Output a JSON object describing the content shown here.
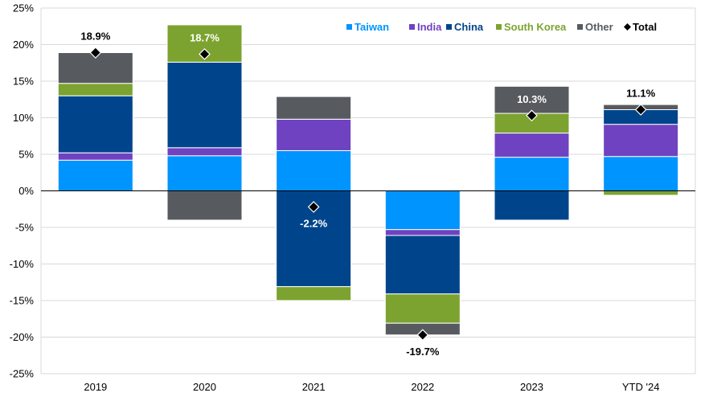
{
  "chart_data": {
    "type": "bar",
    "stacked": true,
    "categories": [
      "2019",
      "2020",
      "2021",
      "2022",
      "2023",
      "YTD '24"
    ],
    "ylim": [
      -25,
      25
    ],
    "yticks": [
      "-25%",
      "-20%",
      "-15%",
      "-10%",
      "-5%",
      "0%",
      "5%",
      "10%",
      "15%",
      "20%",
      "25%"
    ],
    "grid": true,
    "legend_position": "top-right",
    "series": [
      {
        "name": "Taiwan",
        "color": "#0094FF",
        "values": [
          4.2,
          4.8,
          5.5,
          -5.3,
          4.6,
          4.7
        ]
      },
      {
        "name": "India",
        "color": "#6F42C1",
        "values": [
          1.0,
          1.1,
          4.3,
          -0.8,
          3.3,
          4.4
        ]
      },
      {
        "name": "China",
        "color": "#00458B",
        "values": [
          7.8,
          11.7,
          -13.1,
          -8.0,
          -4.0,
          2.0
        ]
      },
      {
        "name": "South Korea",
        "color": "#7CA330",
        "values": [
          1.7,
          5.1,
          -1.9,
          -4.0,
          2.7,
          -0.6
        ]
      },
      {
        "name": "Other",
        "color": "#575B5F",
        "values": [
          4.2,
          -4.0,
          3.1,
          -1.6,
          3.7,
          0.7
        ]
      }
    ],
    "total": {
      "name": "Total",
      "values": [
        18.9,
        18.7,
        -2.2,
        -19.7,
        10.3,
        11.1
      ],
      "labels": [
        "18.9%",
        "18.7%",
        "-2.2%",
        "-19.7%",
        "10.3%",
        "11.1%"
      ],
      "label_colors": [
        "#000000",
        "#ffffff",
        "#ffffff",
        "#000000",
        "#ffffff",
        "#000000"
      ]
    }
  }
}
